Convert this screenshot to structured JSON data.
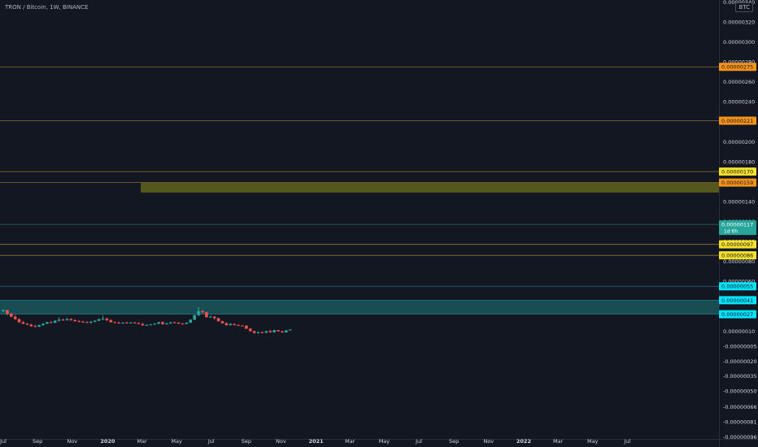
{
  "header": {
    "title": "TRON / Bitcoin, 1W, BINANCE",
    "currency": "BTC"
  },
  "chart_data": {
    "type": "candlestick",
    "title": "TRON / Bitcoin, 1W, BINANCE",
    "ylim": [
      -9.8e-07,
      3.42e-06
    ],
    "y_ticks": [
      {
        "label": "0.00000340",
        "value": 3.4e-06
      },
      {
        "label": "0.00000320",
        "value": 3.2e-06
      },
      {
        "label": "0.00000300",
        "value": 3e-06
      },
      {
        "label": "0.00000280",
        "value": 2.8e-06
      },
      {
        "label": "0.00000260",
        "value": 2.6e-06
      },
      {
        "label": "0.00000240",
        "value": 2.4e-06
      },
      {
        "label": "0.00000220",
        "value": 2.2e-06
      },
      {
        "label": "0.00000200",
        "value": 2e-06
      },
      {
        "label": "0.00000180",
        "value": 1.8e-06
      },
      {
        "label": "0.00000160",
        "value": 1.6e-06
      },
      {
        "label": "0.00000140",
        "value": 1.4e-06
      },
      {
        "label": "0.00000120",
        "value": 1.2e-06
      },
      {
        "label": "0.00000100",
        "value": 1e-06
      },
      {
        "label": "0.00000080",
        "value": 8e-07
      },
      {
        "label": "0.00000060",
        "value": 6e-07
      },
      {
        "label": "0.00000040",
        "value": 4e-07
      },
      {
        "label": "0.00000025",
        "value": 2.5e-07
      },
      {
        "label": "0.00000010",
        "value": 1e-07
      },
      {
        "label": "-0.00000005",
        "value": -5e-08
      },
      {
        "label": "-0.00000020",
        "value": -2e-07
      },
      {
        "label": "-0.00000035",
        "value": -3.5e-07
      },
      {
        "label": "-0.00000050",
        "value": -5e-07
      },
      {
        "label": "-0.00000066",
        "value": -6.6e-07
      },
      {
        "label": "-0.00000081",
        "value": -8.1e-07
      },
      {
        "label": "-0.00000096",
        "value": -9.6e-07
      }
    ],
    "x_ticks": [
      {
        "label": "Jul",
        "week": 0,
        "bold": false
      },
      {
        "label": "Sep",
        "week": 8.6,
        "bold": false
      },
      {
        "label": "Nov",
        "week": 17.3,
        "bold": false
      },
      {
        "label": "2020",
        "week": 26.2,
        "bold": true
      },
      {
        "label": "Mar",
        "week": 34.8,
        "bold": false
      },
      {
        "label": "May",
        "week": 43.5,
        "bold": false
      },
      {
        "label": "Jul",
        "week": 52.2,
        "bold": false
      },
      {
        "label": "Sep",
        "week": 61.0,
        "bold": false
      },
      {
        "label": "Nov",
        "week": 69.7,
        "bold": false
      },
      {
        "label": "2021",
        "week": 78.5,
        "bold": true
      },
      {
        "label": "Mar",
        "week": 87.0,
        "bold": false
      },
      {
        "label": "May",
        "week": 95.6,
        "bold": false
      },
      {
        "label": "Jul",
        "week": 104.3,
        "bold": false
      },
      {
        "label": "Sep",
        "week": 113.1,
        "bold": false
      },
      {
        "label": "Nov",
        "week": 121.8,
        "bold": false
      },
      {
        "label": "2022",
        "week": 130.6,
        "bold": true
      },
      {
        "label": "Mar",
        "week": 139.2,
        "bold": false
      },
      {
        "label": "May",
        "week": 147.9,
        "bold": false
      },
      {
        "label": "Jul",
        "week": 156.6,
        "bold": false
      }
    ],
    "price_levels": [
      {
        "label": "0.00000275",
        "value": 2.75e-06,
        "color": "#f7931a",
        "text_color": "#131722",
        "line_color": "#8a6b3a"
      },
      {
        "label": "0.00000221",
        "value": 2.21e-06,
        "color": "#f7931a",
        "text_color": "#131722",
        "line_color": "#8a6b3a"
      },
      {
        "label": "0.00000170",
        "value": 1.7e-06,
        "color": "#f5e12b",
        "text_color": "#131722",
        "line_color": "#8a7a2a"
      },
      {
        "label": "0.00000159",
        "value": 1.59e-06,
        "color": "#f7931a",
        "text_color": "#131722",
        "line_color": "#8a6b3a"
      },
      {
        "label": "0.00000097",
        "value": 9.7e-07,
        "color": "#f5e12b",
        "text_color": "#131722",
        "line_color": "#8a7a2a"
      },
      {
        "label": "0.00000086",
        "value": 8.6e-07,
        "color": "#f5e12b",
        "text_color": "#131722",
        "line_color": "#8a7a2a"
      },
      {
        "label": "0.00000055",
        "value": 5.5e-07,
        "color": "#00e5ff",
        "text_color": "#131722",
        "line_color": "#2b6f7a"
      },
      {
        "label": "0.00000041",
        "value": 4.1e-07,
        "color": "#00e5ff",
        "text_color": "#131722",
        "line_color": "#2b6f7a"
      },
      {
        "label": "0.00000027",
        "value": 2.7e-07,
        "color": "#00e5ff",
        "text_color": "#131722",
        "line_color": "#2b6f7a"
      }
    ],
    "current_price": {
      "label": "0.00000117",
      "countdown": "1d 6h",
      "value": 1.17e-06,
      "color": "#26a69a"
    },
    "zones": [
      {
        "start_week": 34.5,
        "top": 1.59e-06,
        "bottom": 1.49e-06,
        "color": "#8c8c1a"
      },
      {
        "start_week": -2,
        "top": 4.1e-07,
        "bottom": 2.7e-07,
        "color": "#1f7a7d"
      }
    ],
    "up_color": "#26a69a",
    "down_color": "#ef5350",
    "candles": [
      {
        "o": 3.0,
        "h": 3.2,
        "l": 2.9,
        "c": 3.1
      },
      {
        "o": 3.1,
        "h": 3.15,
        "l": 2.6,
        "c": 2.75
      },
      {
        "o": 2.75,
        "h": 2.85,
        "l": 2.4,
        "c": 2.45
      },
      {
        "o": 2.45,
        "h": 2.6,
        "l": 2.15,
        "c": 2.2
      },
      {
        "o": 2.2,
        "h": 2.3,
        "l": 1.8,
        "c": 1.9
      },
      {
        "o": 1.9,
        "h": 2.0,
        "l": 1.7,
        "c": 1.75
      },
      {
        "o": 1.75,
        "h": 1.8,
        "l": 1.6,
        "c": 1.65
      },
      {
        "o": 1.65,
        "h": 1.75,
        "l": 1.45,
        "c": 1.5
      },
      {
        "o": 1.5,
        "h": 1.65,
        "l": 1.4,
        "c": 1.45
      },
      {
        "o": 1.45,
        "h": 1.65,
        "l": 1.4,
        "c": 1.6
      },
      {
        "o": 1.6,
        "h": 1.8,
        "l": 1.55,
        "c": 1.75
      },
      {
        "o": 1.75,
        "h": 1.95,
        "l": 1.7,
        "c": 1.9
      },
      {
        "o": 1.9,
        "h": 2.0,
        "l": 1.8,
        "c": 1.85
      },
      {
        "o": 1.85,
        "h": 2.1,
        "l": 1.8,
        "c": 2.05
      },
      {
        "o": 2.05,
        "h": 2.4,
        "l": 1.95,
        "c": 2.15
      },
      {
        "o": 2.15,
        "h": 2.25,
        "l": 2.05,
        "c": 2.1
      },
      {
        "o": 2.1,
        "h": 2.35,
        "l": 2.05,
        "c": 2.2
      },
      {
        "o": 2.2,
        "h": 2.3,
        "l": 2.05,
        "c": 2.1
      },
      {
        "o": 2.1,
        "h": 2.2,
        "l": 1.95,
        "c": 2.0
      },
      {
        "o": 2.0,
        "h": 2.1,
        "l": 1.9,
        "c": 1.95
      },
      {
        "o": 1.95,
        "h": 2.05,
        "l": 1.85,
        "c": 1.9
      },
      {
        "o": 1.9,
        "h": 2.0,
        "l": 1.8,
        "c": 1.85
      },
      {
        "o": 1.85,
        "h": 2.0,
        "l": 1.75,
        "c": 1.95
      },
      {
        "o": 1.95,
        "h": 2.1,
        "l": 1.9,
        "c": 2.05
      },
      {
        "o": 2.05,
        "h": 2.25,
        "l": 2.0,
        "c": 2.2
      },
      {
        "o": 2.2,
        "h": 2.55,
        "l": 2.1,
        "c": 2.25
      },
      {
        "o": 2.25,
        "h": 2.35,
        "l": 2.0,
        "c": 2.1
      },
      {
        "o": 2.1,
        "h": 2.2,
        "l": 1.85,
        "c": 1.9
      },
      {
        "o": 1.9,
        "h": 2.0,
        "l": 1.8,
        "c": 1.85
      },
      {
        "o": 1.85,
        "h": 1.95,
        "l": 1.75,
        "c": 1.8
      },
      {
        "o": 1.8,
        "h": 1.9,
        "l": 1.75,
        "c": 1.85
      },
      {
        "o": 1.85,
        "h": 1.95,
        "l": 1.78,
        "c": 1.82
      },
      {
        "o": 1.82,
        "h": 1.92,
        "l": 1.78,
        "c": 1.86
      },
      {
        "o": 1.86,
        "h": 1.92,
        "l": 1.78,
        "c": 1.8
      },
      {
        "o": 1.8,
        "h": 1.9,
        "l": 1.7,
        "c": 1.72
      },
      {
        "o": 1.72,
        "h": 1.82,
        "l": 1.55,
        "c": 1.58
      },
      {
        "o": 1.58,
        "h": 1.68,
        "l": 1.52,
        "c": 1.62
      },
      {
        "o": 1.62,
        "h": 1.72,
        "l": 1.58,
        "c": 1.68
      },
      {
        "o": 1.68,
        "h": 1.8,
        "l": 1.62,
        "c": 1.75
      },
      {
        "o": 1.75,
        "h": 1.95,
        "l": 1.7,
        "c": 1.9
      },
      {
        "o": 1.9,
        "h": 1.98,
        "l": 1.65,
        "c": 1.7
      },
      {
        "o": 1.7,
        "h": 1.85,
        "l": 1.65,
        "c": 1.78
      },
      {
        "o": 1.78,
        "h": 1.92,
        "l": 1.72,
        "c": 1.88
      },
      {
        "o": 1.88,
        "h": 1.95,
        "l": 1.8,
        "c": 1.85
      },
      {
        "o": 1.85,
        "h": 1.9,
        "l": 1.72,
        "c": 1.75
      },
      {
        "o": 1.75,
        "h": 1.82,
        "l": 1.68,
        "c": 1.72
      },
      {
        "o": 1.72,
        "h": 1.9,
        "l": 1.7,
        "c": 1.85
      },
      {
        "o": 1.85,
        "h": 2.2,
        "l": 1.8,
        "c": 2.15
      },
      {
        "o": 2.15,
        "h": 2.65,
        "l": 2.1,
        "c": 2.6
      },
      {
        "o": 2.6,
        "h": 3.4,
        "l": 2.5,
        "c": 3.0
      },
      {
        "o": 3.0,
        "h": 3.15,
        "l": 2.8,
        "c": 2.9
      },
      {
        "o": 2.9,
        "h": 2.95,
        "l": 2.35,
        "c": 2.4
      },
      {
        "o": 2.4,
        "h": 2.55,
        "l": 2.35,
        "c": 2.45
      },
      {
        "o": 2.45,
        "h": 2.5,
        "l": 2.15,
        "c": 2.3
      },
      {
        "o": 2.3,
        "h": 2.35,
        "l": 1.95,
        "c": 2.0
      },
      {
        "o": 2.0,
        "h": 2.05,
        "l": 1.75,
        "c": 1.8
      },
      {
        "o": 1.8,
        "h": 1.88,
        "l": 1.55,
        "c": 1.6
      },
      {
        "o": 1.6,
        "h": 1.8,
        "l": 1.55,
        "c": 1.72
      },
      {
        "o": 1.72,
        "h": 1.76,
        "l": 1.58,
        "c": 1.62
      },
      {
        "o": 1.62,
        "h": 1.66,
        "l": 1.52,
        "c": 1.56
      },
      {
        "o": 1.56,
        "h": 1.62,
        "l": 1.5,
        "c": 1.55
      },
      {
        "o": 1.55,
        "h": 1.6,
        "l": 1.2,
        "c": 1.25
      },
      {
        "o": 1.25,
        "h": 1.3,
        "l": 0.95,
        "c": 1.0
      },
      {
        "o": 1.0,
        "h": 1.05,
        "l": 0.75,
        "c": 0.82
      },
      {
        "o": 0.82,
        "h": 0.95,
        "l": 0.72,
        "c": 0.9
      },
      {
        "o": 0.9,
        "h": 0.96,
        "l": 0.8,
        "c": 0.85
      },
      {
        "o": 0.85,
        "h": 1.05,
        "l": 0.8,
        "c": 1.0
      },
      {
        "o": 1.0,
        "h": 1.15,
        "l": 0.85,
        "c": 0.88
      },
      {
        "o": 0.88,
        "h": 1.15,
        "l": 0.85,
        "c": 1.1
      },
      {
        "o": 1.1,
        "h": 1.12,
        "l": 0.95,
        "c": 0.98
      },
      {
        "o": 0.98,
        "h": 1.05,
        "l": 0.85,
        "c": 0.87
      },
      {
        "o": 0.87,
        "h": 1.12,
        "l": 0.86,
        "c": 1.08
      },
      {
        "o": 1.08,
        "h": 1.17,
        "l": 1.05,
        "c": 1.17
      }
    ]
  }
}
